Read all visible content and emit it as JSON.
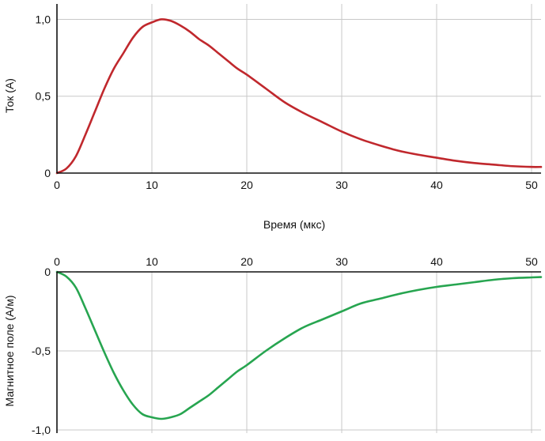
{
  "chart_data": [
    {
      "type": "line",
      "xlabel": "",
      "ylabel": "Ток (А)",
      "xlim": [
        0,
        51
      ],
      "ylim": [
        0,
        1.1
      ],
      "x_ticks": [
        "0",
        "10",
        "20",
        "30",
        "40",
        "50"
      ],
      "y_ticks": [
        "0",
        "0,5",
        "1,0"
      ],
      "grid": true,
      "series": [
        {
          "color": "#c0282d",
          "x": [
            0,
            1,
            2,
            3,
            4,
            5,
            6,
            7,
            8,
            9,
            10,
            11,
            12,
            13,
            14,
            15,
            16,
            17,
            18,
            19,
            20,
            22,
            24,
            26,
            28,
            30,
            32,
            34,
            36,
            38,
            40,
            42,
            44,
            46,
            48,
            50,
            51
          ],
          "y": [
            0,
            0.03,
            0.11,
            0.25,
            0.4,
            0.55,
            0.68,
            0.78,
            0.88,
            0.95,
            0.98,
            1.0,
            0.99,
            0.96,
            0.92,
            0.87,
            0.83,
            0.78,
            0.73,
            0.68,
            0.64,
            0.55,
            0.46,
            0.39,
            0.33,
            0.27,
            0.22,
            0.18,
            0.145,
            0.12,
            0.1,
            0.08,
            0.065,
            0.055,
            0.045,
            0.04,
            0.04
          ]
        }
      ]
    },
    {
      "type": "line",
      "xlabel": "Время (мкс)",
      "ylabel": "Магнитное поле (А/м)",
      "xlim": [
        0,
        51
      ],
      "ylim": [
        -1.02,
        0
      ],
      "x_ticks": [
        "0",
        "10",
        "20",
        "30",
        "40",
        "50"
      ],
      "y_ticks": [
        "0",
        "-0,5",
        "-1,0"
      ],
      "grid": true,
      "series": [
        {
          "color": "#27a550",
          "x": [
            0,
            1,
            2,
            3,
            4,
            5,
            6,
            7,
            8,
            9,
            10,
            11,
            12,
            13,
            14,
            15,
            16,
            17,
            18,
            19,
            20,
            22,
            24,
            26,
            28,
            30,
            32,
            34,
            36,
            38,
            40,
            42,
            44,
            46,
            48,
            50,
            51
          ],
          "y": [
            0,
            -0.03,
            -0.1,
            -0.23,
            -0.37,
            -0.51,
            -0.64,
            -0.75,
            -0.84,
            -0.9,
            -0.92,
            -0.93,
            -0.92,
            -0.9,
            -0.86,
            -0.82,
            -0.78,
            -0.73,
            -0.68,
            -0.63,
            -0.59,
            -0.5,
            -0.42,
            -0.35,
            -0.3,
            -0.25,
            -0.2,
            -0.17,
            -0.14,
            -0.115,
            -0.095,
            -0.08,
            -0.065,
            -0.05,
            -0.04,
            -0.035,
            -0.033
          ]
        }
      ]
    }
  ]
}
